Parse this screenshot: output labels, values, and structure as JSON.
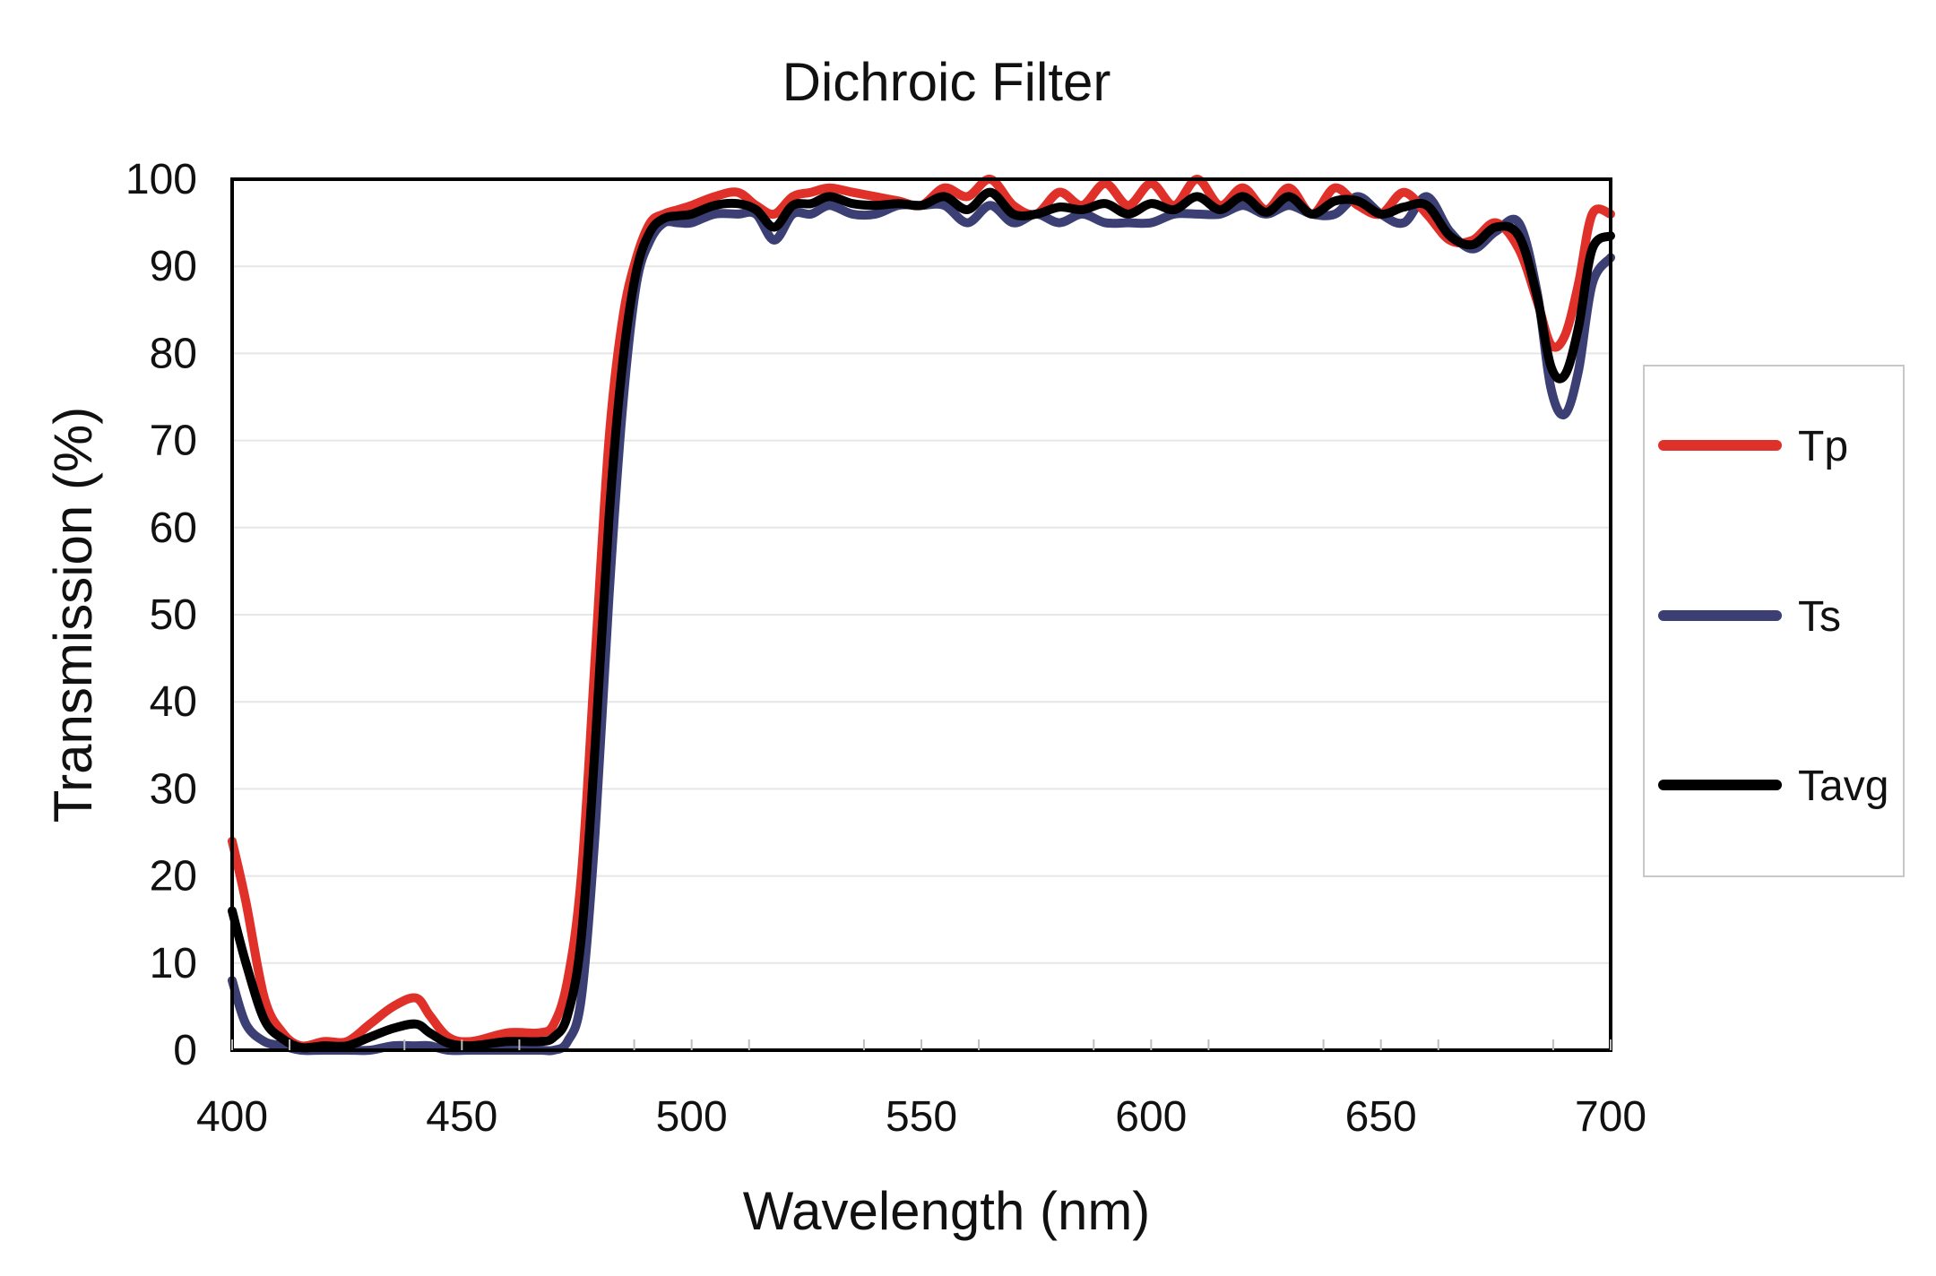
{
  "chart_data": {
    "type": "line",
    "title": "Dichroic Filter",
    "xlabel": "Wavelength (nm)",
    "ylabel": "Transmission (%)",
    "xlim": [
      400,
      700
    ],
    "ylim": [
      0,
      100
    ],
    "x_ticks": [
      "400",
      "450",
      "500",
      "550",
      "600",
      "650",
      "700"
    ],
    "y_ticks": [
      "0",
      "10",
      "20",
      "30",
      "40",
      "50",
      "60",
      "70",
      "80",
      "90",
      "100"
    ],
    "grid": true,
    "legend_position": "right",
    "series": [
      {
        "name": "Tp",
        "color": "#e0302a",
        "x": [
          400,
          403,
          407,
          411,
          415,
          420,
          425,
          430,
          435,
          440,
          443,
          447,
          452,
          460,
          467,
          470,
          473,
          476,
          479,
          482,
          485,
          488,
          491,
          494,
          497,
          500,
          505,
          510,
          514,
          518,
          522,
          526,
          530,
          535,
          540,
          545,
          550,
          555,
          560,
          565,
          570,
          575,
          580,
          585,
          590,
          595,
          600,
          605,
          610,
          615,
          620,
          625,
          630,
          635,
          640,
          645,
          650,
          655,
          660,
          665,
          670,
          675,
          680,
          684,
          687,
          690,
          693,
          696,
          700
        ],
        "values": [
          24,
          17,
          6,
          2,
          0.5,
          1,
          1,
          3,
          5,
          6,
          4,
          1.5,
          1,
          2,
          2,
          3,
          8,
          20,
          45,
          70,
          84,
          91,
          95,
          96,
          96.5,
          97,
          98,
          98.5,
          97,
          96,
          98,
          98.5,
          99,
          98.5,
          98,
          97.5,
          97,
          99,
          98,
          100,
          97,
          96,
          98.5,
          97,
          99.5,
          97,
          99.5,
          97,
          100,
          97,
          99,
          96.5,
          99,
          96,
          99,
          97,
          96,
          98.5,
          96,
          93,
          93,
          95,
          92,
          86,
          81,
          82,
          88,
          96,
          96
        ]
      },
      {
        "name": "Ts",
        "color": "#3c3f73",
        "x": [
          400,
          403,
          407,
          411,
          415,
          420,
          425,
          430,
          435,
          440,
          443,
          447,
          452,
          460,
          467,
          470,
          473,
          476,
          479,
          482,
          485,
          488,
          491,
          494,
          497,
          500,
          505,
          510,
          514,
          518,
          522,
          526,
          530,
          535,
          540,
          545,
          550,
          555,
          560,
          565,
          570,
          575,
          580,
          585,
          590,
          595,
          600,
          605,
          610,
          615,
          620,
          625,
          630,
          635,
          640,
          645,
          650,
          655,
          660,
          665,
          670,
          675,
          680,
          684,
          687,
          690,
          693,
          696,
          700
        ],
        "values": [
          8,
          3,
          1,
          0.5,
          0,
          0,
          0,
          0,
          0.5,
          0.5,
          0.5,
          0,
          0,
          0,
          0,
          0,
          1,
          6,
          25,
          52,
          74,
          88,
          93,
          95,
          95,
          95,
          96,
          96,
          96,
          93,
          96,
          96,
          97,
          96,
          96,
          97,
          97,
          97,
          95,
          97,
          95,
          96,
          95,
          96,
          95,
          95,
          95,
          96,
          96,
          96,
          97,
          96,
          97,
          96,
          96,
          98,
          96,
          95,
          98,
          94,
          92,
          94,
          95,
          87,
          76,
          73,
          78,
          88,
          91
        ]
      },
      {
        "name": "Tavg",
        "color": "#000000",
        "x": [
          400,
          403,
          407,
          411,
          415,
          420,
          425,
          430,
          435,
          440,
          443,
          447,
          452,
          460,
          467,
          470,
          473,
          476,
          479,
          482,
          485,
          488,
          491,
          494,
          497,
          500,
          505,
          510,
          514,
          518,
          522,
          526,
          530,
          535,
          540,
          545,
          550,
          555,
          560,
          565,
          570,
          575,
          580,
          585,
          590,
          595,
          600,
          605,
          610,
          615,
          620,
          625,
          630,
          635,
          640,
          645,
          650,
          655,
          660,
          665,
          670,
          675,
          680,
          684,
          687,
          690,
          693,
          696,
          700
        ],
        "values": [
          16,
          10,
          3.5,
          1.3,
          0.3,
          0.5,
          0.5,
          1.5,
          2.5,
          3,
          2,
          0.8,
          0.5,
          1,
          1,
          1.5,
          4,
          13,
          35,
          61,
          79,
          89.5,
          94,
          95.5,
          95.8,
          96,
          97,
          97.2,
          96.5,
          94.5,
          97,
          97.2,
          98,
          97.2,
          97,
          97.2,
          97,
          98,
          96.5,
          98.5,
          96,
          96,
          96.8,
          96.5,
          97.2,
          96,
          97.2,
          96.5,
          98,
          96.5,
          98,
          96.2,
          98,
          96,
          97.5,
          97.5,
          96,
          96.8,
          97,
          93.5,
          92.5,
          94.5,
          93.5,
          86.5,
          78.5,
          77.5,
          83,
          92,
          93.5
        ]
      }
    ]
  }
}
